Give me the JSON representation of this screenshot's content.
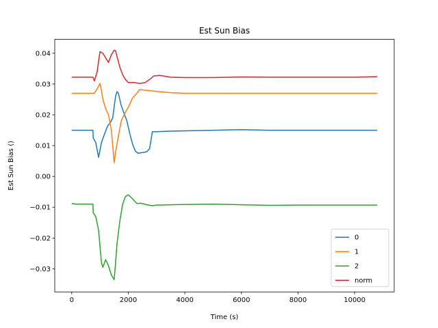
{
  "chart_data": {
    "type": "line",
    "title": "Est Sun Bias",
    "xlabel": "Time (s)",
    "ylabel": "Est Sun Bias ()",
    "xlim": [
      -600,
      11400
    ],
    "ylim": [
      -0.0375,
      0.0445
    ],
    "xticks": [
      0,
      2000,
      4000,
      6000,
      8000,
      10000
    ],
    "xtick_labels": [
      "0",
      "2000",
      "4000",
      "6000",
      "8000",
      "10000"
    ],
    "yticks": [
      -0.03,
      -0.02,
      -0.01,
      0.0,
      0.01,
      0.02,
      0.03,
      0.04
    ],
    "ytick_labels": [
      "−0.03",
      "−0.02",
      "−0.01",
      "0.00",
      "0.01",
      "0.02",
      "0.03",
      "0.04"
    ],
    "grid": false,
    "legend_position": "lower-right",
    "series": [
      {
        "name": "0",
        "color": "#1f77b4",
        "x": [
          0,
          150,
          400,
          750,
          760,
          850,
          950,
          1050,
          1150,
          1250,
          1300,
          1350,
          1450,
          1550,
          1600,
          1650,
          1750,
          1850,
          1950,
          2050,
          2150,
          2250,
          2350,
          2450,
          2550,
          2650,
          2750,
          2800,
          2850,
          3000,
          3500,
          4000,
          5000,
          5500,
          6000,
          7000,
          8000,
          9000,
          10000,
          10800
        ],
        "y": [
          0.015,
          0.015,
          0.015,
          0.015,
          0.0125,
          0.011,
          0.0062,
          0.011,
          0.0135,
          0.016,
          0.0168,
          0.0172,
          0.019,
          0.026,
          0.0275,
          0.027,
          0.023,
          0.0205,
          0.018,
          0.014,
          0.0105,
          0.0082,
          0.0075,
          0.0077,
          0.0078,
          0.008,
          0.009,
          0.0115,
          0.0145,
          0.0145,
          0.0147,
          0.0148,
          0.015,
          0.0151,
          0.0152,
          0.015,
          0.015,
          0.015,
          0.015,
          0.015
        ]
      },
      {
        "name": "1",
        "color": "#ff7f0e",
        "x": [
          0,
          100,
          300,
          600,
          750,
          800,
          900,
          1000,
          1050,
          1100,
          1200,
          1300,
          1400,
          1450,
          1500,
          1550,
          1650,
          1750,
          1850,
          2000,
          2150,
          2300,
          2400,
          2600,
          3000,
          3500,
          4000,
          5000,
          6000,
          7000,
          8000,
          9000,
          10000,
          10800
        ],
        "y": [
          0.027,
          0.027,
          0.027,
          0.027,
          0.027,
          0.027,
          0.0285,
          0.0302,
          0.028,
          0.025,
          0.022,
          0.02,
          0.015,
          0.01,
          0.0045,
          0.008,
          0.013,
          0.018,
          0.02,
          0.0225,
          0.0255,
          0.027,
          0.0282,
          0.028,
          0.0276,
          0.0272,
          0.027,
          0.027,
          0.027,
          0.027,
          0.027,
          0.027,
          0.027,
          0.027
        ]
      },
      {
        "name": "2",
        "color": "#2ca02c",
        "x": [
          0,
          150,
          400,
          750,
          760,
          850,
          950,
          1050,
          1100,
          1200,
          1300,
          1400,
          1500,
          1550,
          1600,
          1700,
          1800,
          1900,
          2000,
          2100,
          2200,
          2300,
          2450,
          2650,
          2850,
          3000,
          3500,
          4000,
          5000,
          6000,
          7000,
          8000,
          9000,
          10000,
          10800
        ],
        "y": [
          -0.0088,
          -0.009,
          -0.009,
          -0.009,
          -0.0118,
          -0.013,
          -0.0175,
          -0.028,
          -0.0295,
          -0.027,
          -0.029,
          -0.032,
          -0.0335,
          -0.028,
          -0.022,
          -0.0145,
          -0.009,
          -0.0065,
          -0.006,
          -0.0068,
          -0.0078,
          -0.0088,
          -0.0087,
          -0.0092,
          -0.0095,
          -0.0093,
          -0.0092,
          -0.0091,
          -0.009,
          -0.0092,
          -0.0094,
          -0.0093,
          -0.0093,
          -0.0093,
          -0.0093
        ]
      },
      {
        "name": "norm",
        "color": "#d62728",
        "x": [
          0,
          150,
          400,
          750,
          800,
          900,
          950,
          1000,
          1100,
          1200,
          1300,
          1400,
          1500,
          1550,
          1600,
          1700,
          1800,
          1900,
          2000,
          2200,
          2400,
          2600,
          2800,
          2900,
          3100,
          3500,
          4000,
          5000,
          6000,
          7000,
          8000,
          9000,
          10000,
          10800
        ],
        "y": [
          0.0322,
          0.0322,
          0.0322,
          0.0322,
          0.031,
          0.034,
          0.0375,
          0.0405,
          0.04,
          0.0385,
          0.037,
          0.0395,
          0.041,
          0.0408,
          0.039,
          0.0355,
          0.033,
          0.0315,
          0.0305,
          0.0305,
          0.0302,
          0.0305,
          0.0318,
          0.0326,
          0.0328,
          0.0322,
          0.0321,
          0.0321,
          0.0323,
          0.0322,
          0.0322,
          0.0322,
          0.0322,
          0.0324
        ]
      }
    ]
  }
}
